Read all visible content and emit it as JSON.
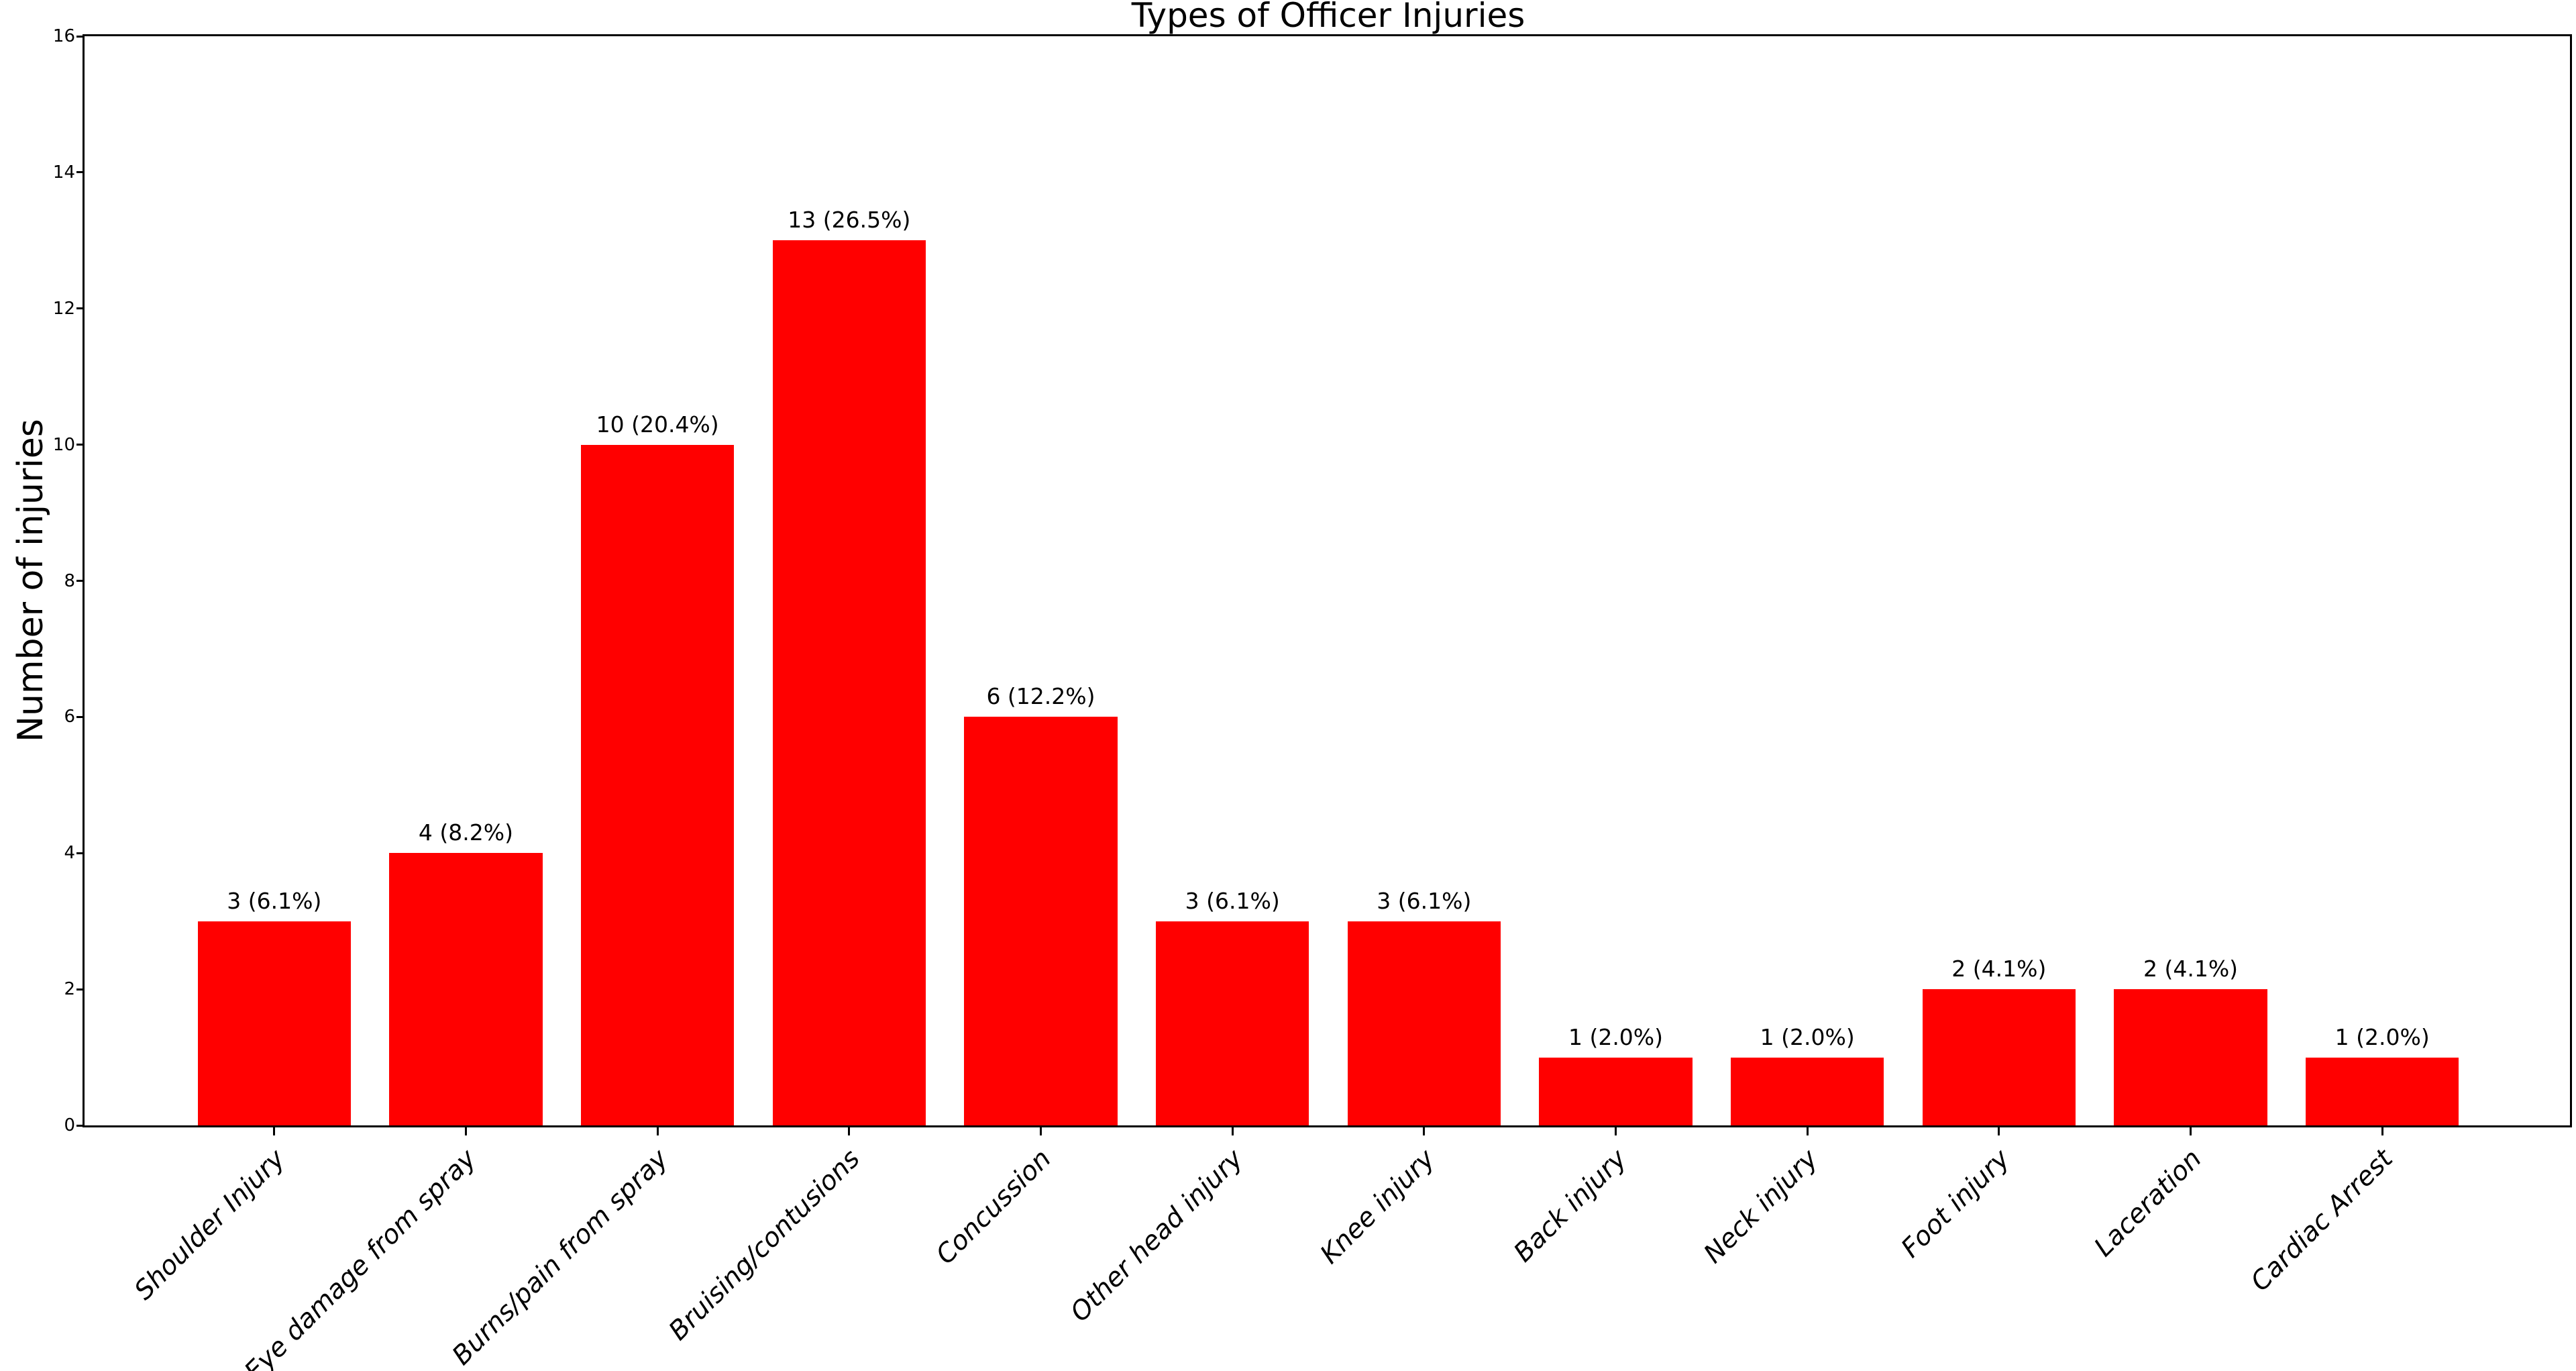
{
  "chart_data": {
    "type": "bar",
    "title": "Types of Officer Injuries",
    "xlabel": "",
    "ylabel": "Number of injuries",
    "categories": [
      "Shoulder Injury",
      "Eye damage from spray",
      "Burns/pain from spray",
      "Bruising/contusions",
      "Concussion",
      "Other head injury",
      "Knee injury",
      "Back injury",
      "Neck injury",
      "Foot injury",
      "Laceration",
      "Cardiac Arrest"
    ],
    "values": [
      3,
      4,
      10,
      13,
      6,
      3,
      3,
      1,
      1,
      2,
      2,
      1
    ],
    "bar_labels": [
      "3 (6.1%)",
      "4 (8.2%)",
      "10 (20.4%)",
      "13 (26.5%)",
      "6 (12.2%)",
      "3 (6.1%)",
      "3 (6.1%)",
      "1 (2.0%)",
      "1 (2.0%)",
      "2 (4.1%)",
      "2 (4.1%)",
      "1 (2.0%)"
    ],
    "yticks": [
      "0",
      "2",
      "4",
      "6",
      "8",
      "10",
      "12",
      "14",
      "16"
    ],
    "ylim": [
      0,
      16
    ],
    "bar_color": "#ff0000",
    "axis_color": "#000000",
    "grid": "off",
    "legend": "none",
    "xtick_style": "rotated-45-italic"
  }
}
